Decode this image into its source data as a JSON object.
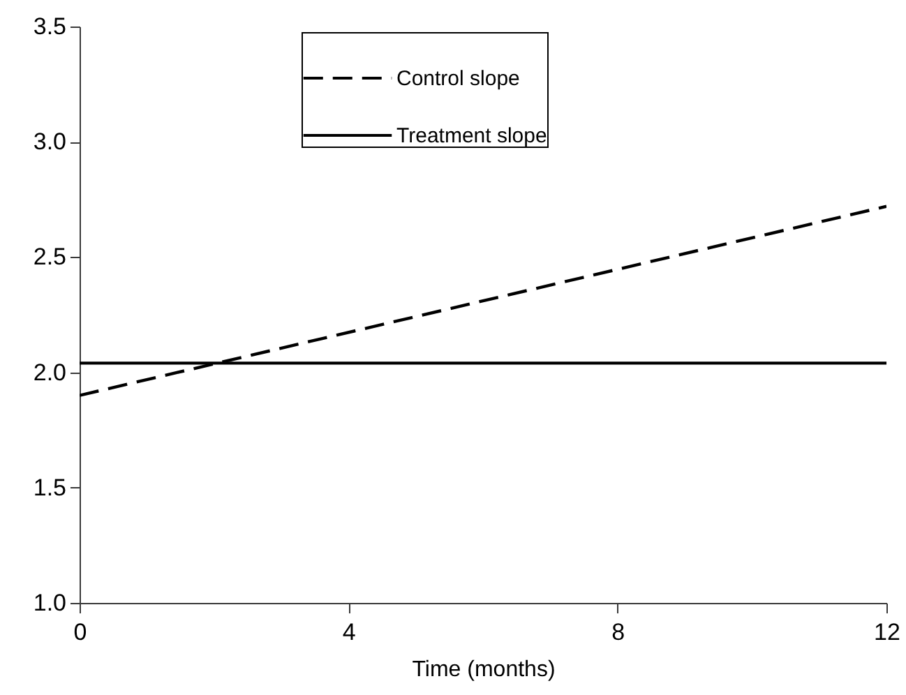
{
  "chart_data": {
    "type": "line",
    "xlabel": "Time (months)",
    "x": [
      0,
      12
    ],
    "series": [
      {
        "name": "Control slope",
        "color": "#000000",
        "line_style": "dashed",
        "values": [
          1.9,
          2.72
        ]
      },
      {
        "name": "Treatment slope",
        "color": "#000000",
        "line_style": "solid",
        "values": [
          2.04,
          2.04
        ]
      }
    ],
    "xlim": [
      0,
      12
    ],
    "xticks": [
      0,
      4,
      8,
      12
    ],
    "ylim": [
      1.0,
      3.5
    ],
    "yticks": [
      {
        "value": 1,
        "label": "1.0"
      },
      {
        "value": 1.5,
        "label": "1.5"
      },
      {
        "value": 2,
        "label": "2.0"
      },
      {
        "value": 2.5,
        "label": "2.5"
      },
      {
        "value": 3,
        "label": "3.0"
      },
      {
        "value": 3.5,
        "label": "3.5"
      }
    ],
    "grid": false,
    "legend": "top",
    "marker": "none"
  }
}
